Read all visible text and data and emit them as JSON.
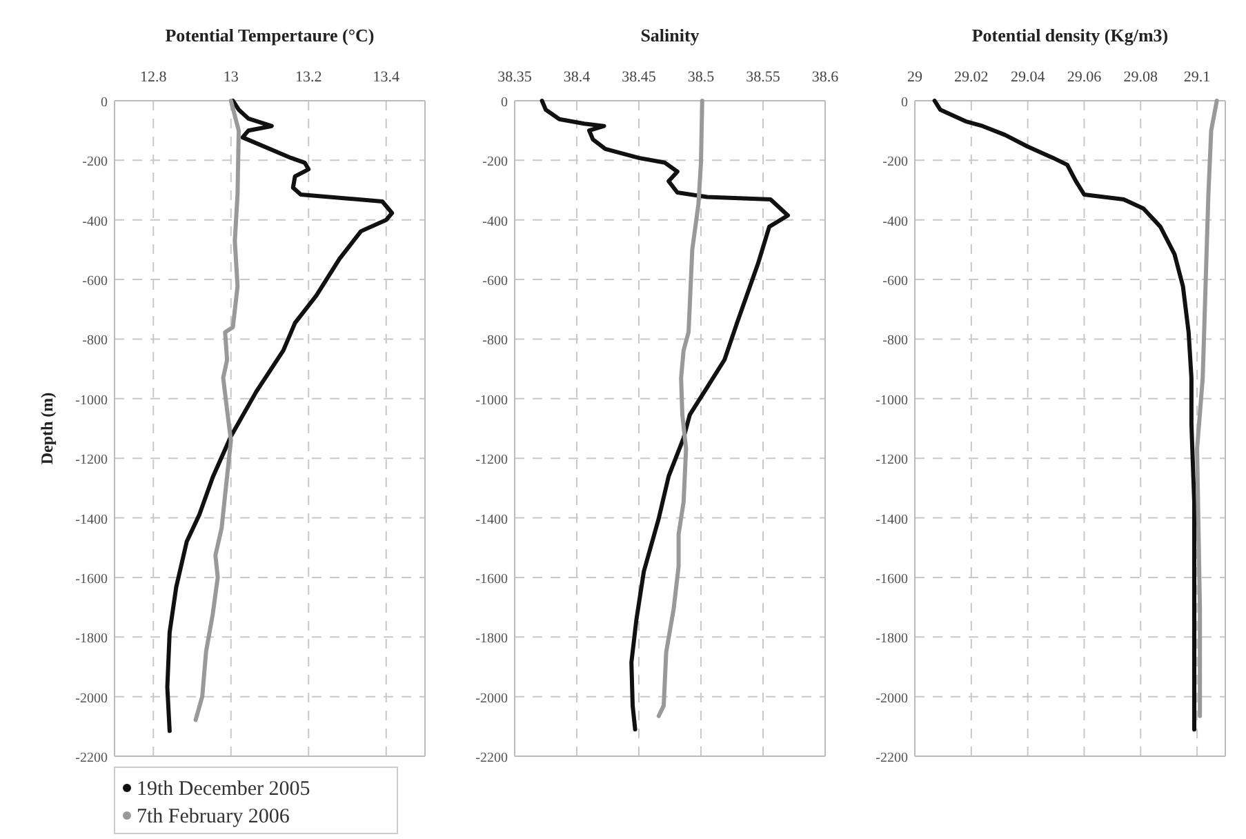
{
  "chart_data": [
    {
      "type": "line",
      "title": "Potential Tempertaure (°C)",
      "ylabel": "Depth (m)",
      "xlim": [
        12.7,
        13.5
      ],
      "xticks": [
        12.8,
        13,
        13.2,
        13.4
      ],
      "ylim": [
        -2200,
        0
      ],
      "yticks": [
        0,
        -200,
        -400,
        -600,
        -800,
        -1000,
        -1200,
        -1400,
        -1600,
        -1800,
        -2000,
        -2200
      ],
      "grid": true,
      "legend": "bottom left",
      "series": [
        {
          "name": "19th December 2005",
          "color": "#111111",
          "x": [
            13.005,
            13.02,
            13.045,
            13.105,
            13.045,
            13.03,
            13.155,
            13.19,
            13.2,
            13.165,
            13.16,
            13.18,
            13.39,
            13.415,
            13.4,
            13.335,
            13.28,
            13.22,
            13.165,
            13.135,
            13.065,
            13.0,
            12.953,
            12.919,
            12.886,
            12.859,
            12.842,
            12.836,
            12.842
          ],
          "values": [
            0,
            -30,
            -60,
            -85,
            -100,
            -123,
            -192,
            -208,
            -230,
            -254,
            -292,
            -315,
            -338,
            -377,
            -400,
            -438,
            -530,
            -654,
            -746,
            -838,
            -977,
            -1126,
            -1264,
            -1388,
            -1480,
            -1632,
            -1784,
            -1968,
            -2115
          ]
        },
        {
          "name": "7th February 2006",
          "color": "#999999",
          "x": [
            13.0,
            13.02,
            13.017,
            13.01,
            13.017,
            13.005,
            12.985,
            12.99,
            12.98,
            12.99,
            13.0,
            12.987,
            12.976,
            12.96,
            12.966,
            12.953,
            12.936,
            12.926,
            12.909
          ],
          "values": [
            0,
            -100,
            -315,
            -470,
            -623,
            -760,
            -777,
            -870,
            -930,
            -1038,
            -1140,
            -1297,
            -1434,
            -1526,
            -1600,
            -1724,
            -1848,
            -2000,
            -2078
          ]
        }
      ]
    },
    {
      "type": "line",
      "title": "Salinity",
      "xlim": [
        38.35,
        38.6
      ],
      "xticks": [
        38.35,
        38.4,
        38.45,
        38.5,
        38.55,
        38.6
      ],
      "ylim": [
        -2200,
        0
      ],
      "yticks": [
        0,
        -200,
        -400,
        -600,
        -800,
        -1000,
        -1200,
        -1400,
        -1600,
        -1800,
        -2000,
        -2200
      ],
      "grid": true,
      "series": [
        {
          "color": "#111111",
          "x": [
            38.372,
            38.375,
            38.386,
            38.406,
            38.422,
            38.41,
            38.413,
            38.423,
            38.45,
            38.471,
            38.481,
            38.474,
            38.481,
            38.505,
            38.556,
            38.57,
            38.555,
            38.546,
            38.529,
            38.519,
            38.505,
            38.491,
            38.486,
            38.474,
            38.466,
            38.454,
            38.448,
            38.444,
            38.445,
            38.447
          ],
          "values": [
            0,
            -30,
            -62,
            -77,
            -85,
            -100,
            -130,
            -162,
            -192,
            -208,
            -238,
            -270,
            -308,
            -323,
            -331,
            -385,
            -423,
            -546,
            -746,
            -869,
            -962,
            -1054,
            -1132,
            -1260,
            -1402,
            -1580,
            -1742,
            -1885,
            -2030,
            -2110
          ]
        },
        {
          "color": "#999999",
          "x": [
            38.501,
            38.5,
            38.498,
            38.493,
            38.491,
            38.49,
            38.486,
            38.484,
            38.485,
            38.488,
            38.486,
            38.482,
            38.482,
            38.478,
            38.472,
            38.47,
            38.466
          ],
          "values": [
            0,
            -208,
            -346,
            -500,
            -685,
            -777,
            -838,
            -931,
            -1054,
            -1168,
            -1347,
            -1455,
            -1563,
            -1706,
            -1851,
            -2030,
            -2065
          ]
        }
      ]
    },
    {
      "type": "line",
      "title": "Potential density (Kg/m3)",
      "xlim": [
        29,
        29.11
      ],
      "xticks": [
        29,
        29.02,
        29.04,
        29.06,
        29.08,
        29.1
      ],
      "ylim": [
        -2200,
        0
      ],
      "yticks": [
        0,
        -200,
        -400,
        -600,
        -800,
        -1000,
        -1200,
        -1400,
        -1600,
        -1800,
        -2000,
        -2200
      ],
      "grid": true,
      "series": [
        {
          "color": "#111111",
          "x": [
            29.007,
            29.009,
            29.018,
            29.024,
            29.032,
            29.04,
            29.049,
            29.054,
            29.057,
            29.06,
            29.074,
            29.081,
            29.087,
            29.092,
            29.095,
            29.097,
            29.098,
            29.098,
            29.099,
            29.099,
            29.099
          ],
          "values": [
            0,
            -30,
            -69,
            -85,
            -115,
            -154,
            -192,
            -215,
            -269,
            -315,
            -331,
            -362,
            -423,
            -515,
            -623,
            -777,
            -931,
            -1085,
            -1347,
            -1706,
            -2110
          ]
        },
        {
          "color": "#999999",
          "x": [
            29.107,
            29.105,
            29.104,
            29.103,
            29.102,
            29.1,
            29.101,
            29.101
          ],
          "values": [
            0,
            -100,
            -315,
            -623,
            -931,
            -1168,
            -1706,
            -2065
          ]
        }
      ]
    }
  ]
}
